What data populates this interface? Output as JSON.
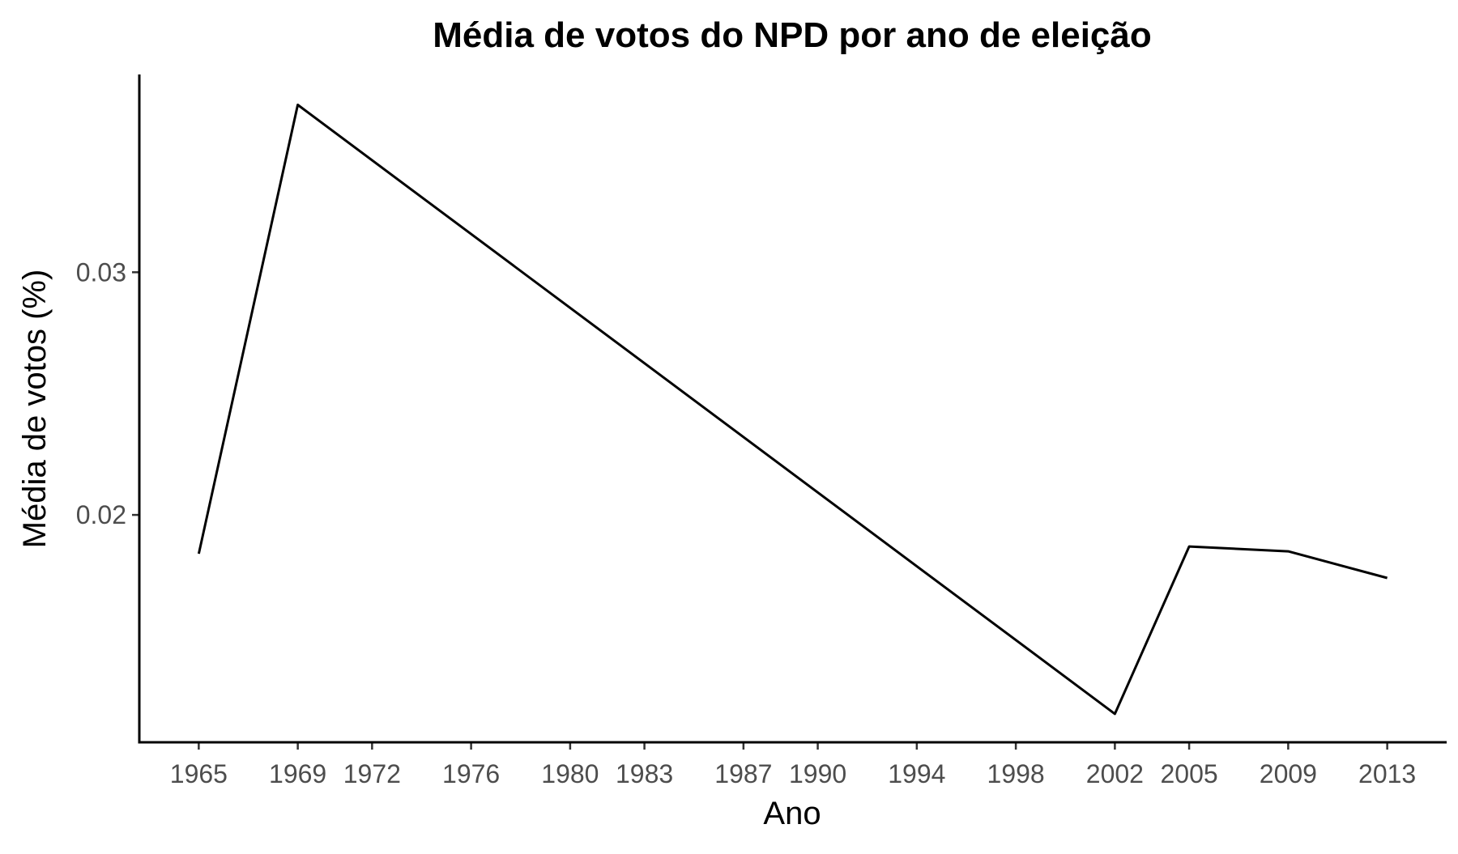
{
  "chart_data": {
    "type": "line",
    "title": "Média de votos do NPD por ano de eleição",
    "xlabel": "Ano",
    "ylabel": "Média de votos (%)",
    "x": [
      1965,
      1969,
      2002,
      2005,
      2009,
      2013
    ],
    "series": [
      {
        "values": [
          0.0184,
          0.0369,
          0.0118,
          0.0187,
          0.0185,
          0.0174
        ]
      }
    ],
    "x_ticks": [
      "1965",
      "1969",
      "1972",
      "1976",
      "1980",
      "1983",
      "1987",
      "1990",
      "1994",
      "1998",
      "2002",
      "2005",
      "2009",
      "2013"
    ],
    "y_ticks": [
      "0.02",
      "0.03"
    ],
    "xlim": [
      1962.6,
      2015.4
    ],
    "ylim": [
      0.01063,
      0.03815
    ],
    "grid": false,
    "legend": "none",
    "line_color": "#000000",
    "tick_label_color": "#4d4d4d"
  }
}
